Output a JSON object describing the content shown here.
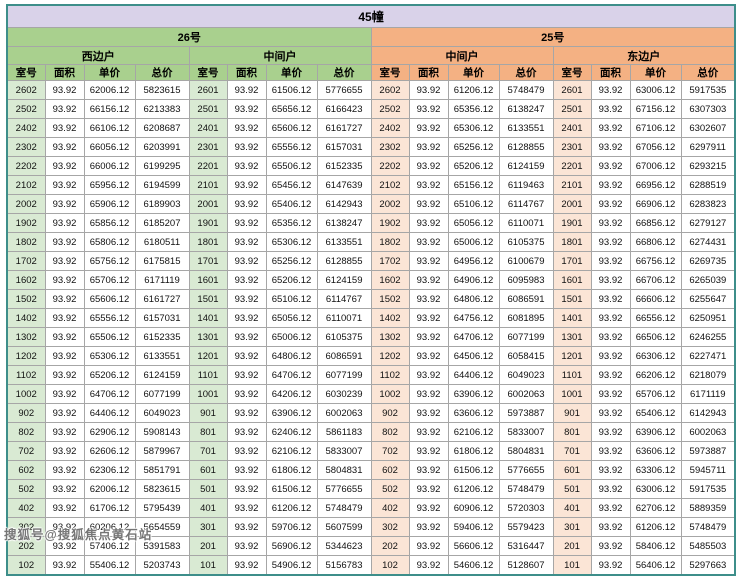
{
  "title": "45幢",
  "watermark": "搜狐号@搜狐焦点黄石站",
  "colors": {
    "title_bg": "#d9d2e9",
    "green_header": "#a9d08e",
    "green_room_cell": "#d9ead3",
    "peach_header": "#f4b183",
    "peach_room_cell": "#fbe5d6",
    "grid_line": "#a6a6a6",
    "outer_border": "#3d8e8a"
  },
  "table": {
    "buildings": [
      {
        "label": "26号",
        "units": [
          "西边户",
          "中间户"
        ]
      },
      {
        "label": "25号",
        "units": [
          "中间户",
          "东边户"
        ]
      }
    ],
    "column_headers": [
      "室号",
      "面积",
      "单价",
      "总价"
    ],
    "rows": [
      [
        "2602",
        "93.92",
        "62006.12",
        "5823615",
        "2601",
        "93.92",
        "61506.12",
        "5776655",
        "2602",
        "93.92",
        "61206.12",
        "5748479",
        "2601",
        "93.92",
        "63006.12",
        "5917535"
      ],
      [
        "2502",
        "93.92",
        "66156.12",
        "6213383",
        "2501",
        "93.92",
        "65656.12",
        "6166423",
        "2502",
        "93.92",
        "65356.12",
        "6138247",
        "2501",
        "93.92",
        "67156.12",
        "6307303"
      ],
      [
        "2402",
        "93.92",
        "66106.12",
        "6208687",
        "2401",
        "93.92",
        "65606.12",
        "6161727",
        "2402",
        "93.92",
        "65306.12",
        "6133551",
        "2401",
        "93.92",
        "67106.12",
        "6302607"
      ],
      [
        "2302",
        "93.92",
        "66056.12",
        "6203991",
        "2301",
        "93.92",
        "65556.12",
        "6157031",
        "2302",
        "93.92",
        "65256.12",
        "6128855",
        "2301",
        "93.92",
        "67056.12",
        "6297911"
      ],
      [
        "2202",
        "93.92",
        "66006.12",
        "6199295",
        "2201",
        "93.92",
        "65506.12",
        "6152335",
        "2202",
        "93.92",
        "65206.12",
        "6124159",
        "2201",
        "93.92",
        "67006.12",
        "6293215"
      ],
      [
        "2102",
        "93.92",
        "65956.12",
        "6194599",
        "2101",
        "93.92",
        "65456.12",
        "6147639",
        "2102",
        "93.92",
        "65156.12",
        "6119463",
        "2101",
        "93.92",
        "66956.12",
        "6288519"
      ],
      [
        "2002",
        "93.92",
        "65906.12",
        "6189903",
        "2001",
        "93.92",
        "65406.12",
        "6142943",
        "2002",
        "93.92",
        "65106.12",
        "6114767",
        "2001",
        "93.92",
        "66906.12",
        "6283823"
      ],
      [
        "1902",
        "93.92",
        "65856.12",
        "6185207",
        "1901",
        "93.92",
        "65356.12",
        "6138247",
        "1902",
        "93.92",
        "65056.12",
        "6110071",
        "1901",
        "93.92",
        "66856.12",
        "6279127"
      ],
      [
        "1802",
        "93.92",
        "65806.12",
        "6180511",
        "1801",
        "93.92",
        "65306.12",
        "6133551",
        "1802",
        "93.92",
        "65006.12",
        "6105375",
        "1801",
        "93.92",
        "66806.12",
        "6274431"
      ],
      [
        "1702",
        "93.92",
        "65756.12",
        "6175815",
        "1701",
        "93.92",
        "65256.12",
        "6128855",
        "1702",
        "93.92",
        "64956.12",
        "6100679",
        "1701",
        "93.92",
        "66756.12",
        "6269735"
      ],
      [
        "1602",
        "93.92",
        "65706.12",
        "6171119",
        "1601",
        "93.92",
        "65206.12",
        "6124159",
        "1602",
        "93.92",
        "64906.12",
        "6095983",
        "1601",
        "93.92",
        "66706.12",
        "6265039"
      ],
      [
        "1502",
        "93.92",
        "65606.12",
        "6161727",
        "1501",
        "93.92",
        "65106.12",
        "6114767",
        "1502",
        "93.92",
        "64806.12",
        "6086591",
        "1501",
        "93.92",
        "66606.12",
        "6255647"
      ],
      [
        "1402",
        "93.92",
        "65556.12",
        "6157031",
        "1401",
        "93.92",
        "65056.12",
        "6110071",
        "1402",
        "93.92",
        "64756.12",
        "6081895",
        "1401",
        "93.92",
        "66556.12",
        "6250951"
      ],
      [
        "1302",
        "93.92",
        "65506.12",
        "6152335",
        "1301",
        "93.92",
        "65006.12",
        "6105375",
        "1302",
        "93.92",
        "64706.12",
        "6077199",
        "1301",
        "93.92",
        "66506.12",
        "6246255"
      ],
      [
        "1202",
        "93.92",
        "65306.12",
        "6133551",
        "1201",
        "93.92",
        "64806.12",
        "6086591",
        "1202",
        "93.92",
        "64506.12",
        "6058415",
        "1201",
        "93.92",
        "66306.12",
        "6227471"
      ],
      [
        "1102",
        "93.92",
        "65206.12",
        "6124159",
        "1101",
        "93.92",
        "64706.12",
        "6077199",
        "1102",
        "93.92",
        "64406.12",
        "6049023",
        "1101",
        "93.92",
        "66206.12",
        "6218079"
      ],
      [
        "1002",
        "93.92",
        "64706.12",
        "6077199",
        "1001",
        "93.92",
        "64206.12",
        "6030239",
        "1002",
        "93.92",
        "63906.12",
        "6002063",
        "1001",
        "93.92",
        "65706.12",
        "6171119"
      ],
      [
        "902",
        "93.92",
        "64406.12",
        "6049023",
        "901",
        "93.92",
        "63906.12",
        "6002063",
        "902",
        "93.92",
        "63606.12",
        "5973887",
        "901",
        "93.92",
        "65406.12",
        "6142943"
      ],
      [
        "802",
        "93.92",
        "62906.12",
        "5908143",
        "801",
        "93.92",
        "62406.12",
        "5861183",
        "802",
        "93.92",
        "62106.12",
        "5833007",
        "801",
        "93.92",
        "63906.12",
        "6002063"
      ],
      [
        "702",
        "93.92",
        "62606.12",
        "5879967",
        "701",
        "93.92",
        "62106.12",
        "5833007",
        "702",
        "93.92",
        "61806.12",
        "5804831",
        "701",
        "93.92",
        "63606.12",
        "5973887"
      ],
      [
        "602",
        "93.92",
        "62306.12",
        "5851791",
        "601",
        "93.92",
        "61806.12",
        "5804831",
        "602",
        "93.92",
        "61506.12",
        "5776655",
        "601",
        "93.92",
        "63306.12",
        "5945711"
      ],
      [
        "502",
        "93.92",
        "62006.12",
        "5823615",
        "501",
        "93.92",
        "61506.12",
        "5776655",
        "502",
        "93.92",
        "61206.12",
        "5748479",
        "501",
        "93.92",
        "63006.12",
        "5917535"
      ],
      [
        "402",
        "93.92",
        "61706.12",
        "5795439",
        "401",
        "93.92",
        "61206.12",
        "5748479",
        "402",
        "93.92",
        "60906.12",
        "5720303",
        "401",
        "93.92",
        "62706.12",
        "5889359"
      ],
      [
        "302",
        "93.92",
        "60206.12",
        "5654559",
        "301",
        "93.92",
        "59706.12",
        "5607599",
        "302",
        "93.92",
        "59406.12",
        "5579423",
        "301",
        "93.92",
        "61206.12",
        "5748479"
      ],
      [
        "202",
        "93.92",
        "57406.12",
        "5391583",
        "201",
        "93.92",
        "56906.12",
        "5344623",
        "202",
        "93.92",
        "56606.12",
        "5316447",
        "201",
        "93.92",
        "58406.12",
        "5485503"
      ],
      [
        "102",
        "93.92",
        "55406.12",
        "5203743",
        "101",
        "93.92",
        "54906.12",
        "5156783",
        "102",
        "93.92",
        "54606.12",
        "5128607",
        "101",
        "93.92",
        "56406.12",
        "5297663"
      ]
    ]
  }
}
